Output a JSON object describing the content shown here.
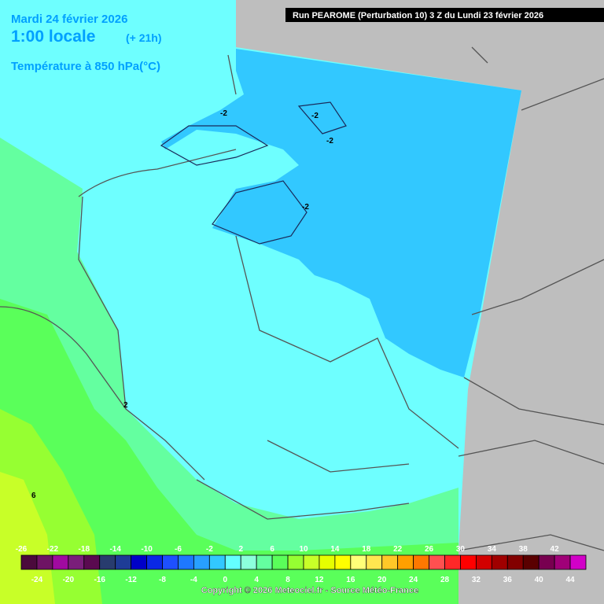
{
  "header": {
    "date": "Mardi 24 février 2026",
    "time": "1:00 locale",
    "lead": "(+ 21h)",
    "parameter": "Température à 850 hPa(°C)",
    "run": "Run PEAROME (Perturbation 10) 3 Z du Lundi 23 février 2026"
  },
  "contour_labels": [
    "-2",
    "-2",
    "-2",
    "-2",
    "2",
    "6"
  ],
  "legend": {
    "top_labels": [
      -26,
      -22,
      -18,
      -14,
      -10,
      -6,
      -2,
      2,
      6,
      10,
      14,
      18,
      22,
      26,
      30,
      34,
      38,
      42
    ],
    "bottom_labels": [
      -24,
      -20,
      -16,
      -12,
      -8,
      -4,
      0,
      4,
      8,
      12,
      16,
      20,
      24,
      28,
      32,
      36,
      40,
      44
    ],
    "colors": [
      "#4b0a3c",
      "#6e1464",
      "#a00aa0",
      "#7a1e7a",
      "#5a0a50",
      "#283c6e",
      "#1e3c96",
      "#0000c8",
      "#0a28e6",
      "#1e50ff",
      "#1e78ff",
      "#28a0ff",
      "#32c8ff",
      "#64ffff",
      "#8cffdc",
      "#64ffa0",
      "#5aff5a",
      "#96ff32",
      "#c8ff28",
      "#e6ff00",
      "#ffff00",
      "#ffff78",
      "#ffe650",
      "#ffc828",
      "#ffa000",
      "#ff7800",
      "#ff5050",
      "#ff2828",
      "#ff0000",
      "#d20000",
      "#a00000",
      "#820000",
      "#5a0000",
      "#780050",
      "#a00078",
      "#d200c8"
    ]
  },
  "footer": {
    "copyright": "Copyright © 2026 Meteociel.fr - Source Météo-France"
  }
}
